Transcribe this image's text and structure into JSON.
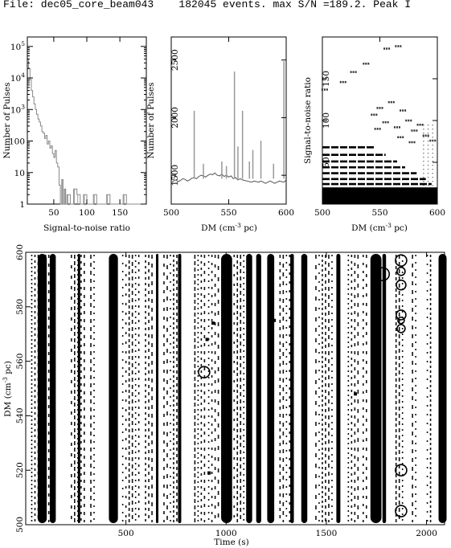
{
  "header": {
    "text": "File: dec05_core_beam043    182045 events. max S/N =189.2. Peak I"
  },
  "chart_data": [
    {
      "type": "line",
      "name": "snr-histogram",
      "xlabel": "Signal-to-noise ratio",
      "ylabel": "Number of Pulses",
      "xlim": [
        10,
        190
      ],
      "ylim_log10": [
        0,
        5.3
      ],
      "log_y": true,
      "xticks": [
        50,
        100,
        150
      ],
      "yticks": [
        {
          "label": "1",
          "value": 1
        },
        {
          "label": "10",
          "value": 10
        },
        {
          "label": "100",
          "value": 100
        },
        {
          "label": "10",
          "sup": "3",
          "value": 1000
        },
        {
          "label": "10",
          "sup": "4",
          "value": 10000
        },
        {
          "label": "10",
          "sup": "5",
          "value": 100000
        }
      ],
      "x": [
        10,
        12,
        14,
        16,
        18,
        20,
        22,
        24,
        26,
        28,
        30,
        32,
        34,
        36,
        38,
        40,
        42,
        44,
        46,
        48,
        50,
        52,
        54,
        56,
        58,
        60,
        62,
        64,
        66,
        68,
        70,
        75,
        80,
        85,
        90,
        95,
        100,
        105,
        110,
        115,
        120,
        125,
        130,
        135,
        140,
        145,
        150,
        155,
        160,
        165,
        170,
        175,
        180,
        185
      ],
      "values": [
        40000,
        20000,
        9000,
        4000,
        2500,
        1500,
        1000,
        700,
        500,
        400,
        300,
        200,
        180,
        120,
        150,
        80,
        100,
        60,
        70,
        40,
        30,
        50,
        20,
        15,
        4,
        1,
        6,
        1,
        3,
        1,
        2,
        1,
        3,
        2,
        1,
        2,
        1,
        1,
        2,
        1,
        1,
        1,
        2,
        1,
        1,
        1,
        1,
        2,
        1,
        1,
        1,
        1,
        1,
        1
      ]
    },
    {
      "type": "bar",
      "name": "dm-histogram",
      "xlabel": "DM (cm",
      "xlabel_sup": "-3",
      "xlabel_tail": " pc)",
      "ylabel": "Number of Pulses",
      "xlim": [
        500,
        600
      ],
      "ylim": [
        1250,
        2700
      ],
      "xticks": [
        500,
        550,
        600
      ],
      "yticks": [
        1500,
        2000,
        2500
      ],
      "baseline": [
        1440,
        1450,
        1460,
        1445,
        1455,
        1470,
        1465,
        1450,
        1460,
        1475,
        1480,
        1470,
        1490,
        1500,
        1495,
        1485,
        1500,
        1510,
        1505,
        1520,
        1500,
        1495,
        1510,
        1490,
        1500,
        1485,
        1495,
        1470,
        1480,
        1460,
        1470,
        1460,
        1455,
        1450,
        1445,
        1440,
        1450,
        1445,
        1440,
        1450,
        1440,
        1430,
        1440,
        1450,
        1440,
        1430,
        1440,
        1450,
        1445,
        1440,
        1460
      ],
      "spikes": [
        {
          "dm": 520,
          "value": 2060
        },
        {
          "dm": 528,
          "value": 1600
        },
        {
          "dm": 544,
          "value": 1620
        },
        {
          "dm": 548,
          "value": 1580
        },
        {
          "dm": 555,
          "value": 2400
        },
        {
          "dm": 558,
          "value": 1750
        },
        {
          "dm": 562,
          "value": 2060
        },
        {
          "dm": 568,
          "value": 1620
        },
        {
          "dm": 571,
          "value": 1720
        },
        {
          "dm": 578,
          "value": 1800
        },
        {
          "dm": 589,
          "value": 1600
        },
        {
          "dm": 598,
          "value": 2490
        }
      ]
    },
    {
      "type": "scatter",
      "name": "snr-vs-dm",
      "xlabel": "DM (cm",
      "xlabel_sup": "-3",
      "xlabel_tail": " pc)",
      "ylabel": "Signal-to-noise ratio",
      "xlim": [
        500,
        600
      ],
      "ylim": [
        0,
        200
      ],
      "xticks": [
        500,
        550,
        600
      ],
      "yticks": [
        50,
        100,
        150
      ],
      "bands": [
        {
          "y": 6,
          "x0": 500,
          "x1": 600
        },
        {
          "y": 10,
          "x0": 500,
          "x1": 600
        },
        {
          "y": 14,
          "x0": 500,
          "x1": 600
        },
        {
          "y": 18,
          "x0": 500,
          "x1": 598
        },
        {
          "y": 24,
          "x0": 500,
          "x1": 595
        },
        {
          "y": 30,
          "x0": 500,
          "x1": 590
        },
        {
          "y": 37,
          "x0": 500,
          "x1": 582
        },
        {
          "y": 44,
          "x0": 500,
          "x1": 572
        },
        {
          "y": 51,
          "x0": 500,
          "x1": 565
        },
        {
          "y": 59,
          "x0": 500,
          "x1": 555
        },
        {
          "y": 68,
          "x0": 500,
          "x1": 545
        }
      ],
      "outliers": [
        {
          "x": 502,
          "y": 137
        },
        {
          "x": 518,
          "y": 146
        },
        {
          "x": 527,
          "y": 158
        },
        {
          "x": 538,
          "y": 168
        },
        {
          "x": 556,
          "y": 186
        },
        {
          "x": 566,
          "y": 189
        },
        {
          "x": 545,
          "y": 107
        },
        {
          "x": 550,
          "y": 115
        },
        {
          "x": 555,
          "y": 98
        },
        {
          "x": 560,
          "y": 122
        },
        {
          "x": 565,
          "y": 92
        },
        {
          "x": 570,
          "y": 112
        },
        {
          "x": 575,
          "y": 100
        },
        {
          "x": 580,
          "y": 88
        },
        {
          "x": 585,
          "y": 95
        },
        {
          "x": 590,
          "y": 82
        },
        {
          "x": 596,
          "y": 76
        },
        {
          "x": 548,
          "y": 90
        },
        {
          "x": 568,
          "y": 80
        },
        {
          "x": 578,
          "y": 74
        }
      ]
    },
    {
      "type": "scatter",
      "name": "dm-vs-time",
      "xlabel": "Time (s)",
      "ylabel": "DM (cm",
      "ylabel_sup": "-3",
      "ylabel_tail": " pc)",
      "xlim": [
        0,
        2090
      ],
      "ylim": [
        500,
        600
      ],
      "xticks": [
        500,
        1000,
        1500,
        2000
      ],
      "yticks": [
        500,
        520,
        540,
        560,
        580,
        600
      ],
      "solid_bands": [
        {
          "t": 60,
          "w": 45
        },
        {
          "t": 120,
          "w": 30
        },
        {
          "t": 260,
          "w": 10
        },
        {
          "t": 415,
          "w": 45
        },
        {
          "t": 650,
          "w": 12
        },
        {
          "t": 760,
          "w": 16
        },
        {
          "t": 975,
          "w": 55
        },
        {
          "t": 1100,
          "w": 30
        },
        {
          "t": 1150,
          "w": 25
        },
        {
          "t": 1205,
          "w": 35
        },
        {
          "t": 1320,
          "w": 18
        },
        {
          "t": 1375,
          "w": 30
        },
        {
          "t": 1550,
          "w": 20
        },
        {
          "t": 1720,
          "w": 55
        },
        {
          "t": 1780,
          "w": 18
        },
        {
          "t": 2060,
          "w": 40
        }
      ],
      "streak_bands": [
        {
          "t": 30,
          "w": 60
        },
        {
          "t": 95,
          "w": 30
        },
        {
          "t": 220,
          "w": 80
        },
        {
          "t": 325,
          "w": 30
        },
        {
          "t": 480,
          "w": 90
        },
        {
          "t": 590,
          "w": 50
        },
        {
          "t": 690,
          "w": 80
        },
        {
          "t": 840,
          "w": 60
        },
        {
          "t": 905,
          "w": 60
        },
        {
          "t": 1040,
          "w": 60
        },
        {
          "t": 1265,
          "w": 80
        },
        {
          "t": 1440,
          "w": 90
        },
        {
          "t": 1610,
          "w": 70
        },
        {
          "t": 1680,
          "w": 25
        },
        {
          "t": 1840,
          "w": 50
        },
        {
          "t": 1930,
          "w": 40
        },
        {
          "t": 2000,
          "w": 30
        }
      ],
      "circles": [
        {
          "t": 1873,
          "dm": 597,
          "r": 7
        },
        {
          "t": 1873,
          "dm": 593,
          "r": 5
        },
        {
          "t": 1782,
          "dm": 592,
          "r": 8
        },
        {
          "t": 1873,
          "dm": 588,
          "r": 6
        },
        {
          "t": 1873,
          "dm": 577,
          "r": 6
        },
        {
          "t": 1873,
          "dm": 575,
          "r": 4
        },
        {
          "t": 890,
          "dm": 556,
          "r": 7
        },
        {
          "t": 1873,
          "dm": 572,
          "r": 5
        },
        {
          "t": 1873,
          "dm": 520,
          "r": 7
        },
        {
          "t": 1873,
          "dm": 505,
          "r": 7
        }
      ],
      "markers": [
        {
          "t": 935,
          "dm": 574
        },
        {
          "t": 905,
          "dm": 568
        },
        {
          "t": 915,
          "dm": 519
        },
        {
          "t": 1240,
          "dm": 575
        },
        {
          "t": 1645,
          "dm": 548
        }
      ]
    }
  ]
}
